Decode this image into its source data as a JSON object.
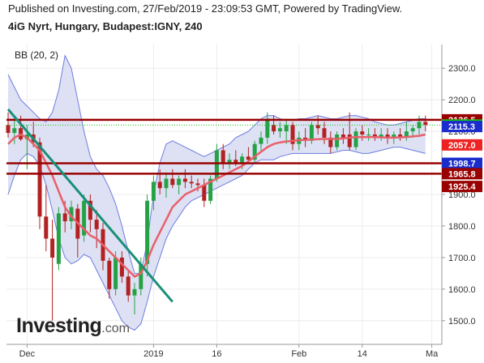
{
  "header": {
    "published": "Published on Investing.com, 27/Feb/2019 - 23:09:53 GMT, Powered by TradingView.",
    "symbol": "4iG Nyrt, Hungary, Budapest:IGNY, 240"
  },
  "indicator": {
    "label": "BB (20, 2)"
  },
  "logo": {
    "main": "Investing",
    "suffix": ".com"
  },
  "chart_data": {
    "type": "candlestick",
    "title": "4iG Nyrt, Hungary, Budapest:IGNY, 240",
    "y_axis": {
      "range": [
        1425,
        2375
      ],
      "ticks": [
        1500,
        1600,
        1700,
        1800,
        1900,
        2000,
        2100,
        2200,
        2300
      ],
      "tick_labels": [
        "1500.0",
        "1600.0",
        "1700.0",
        "1800.0",
        "1900.0",
        "2000.0",
        "2100.0",
        "2200.0",
        "2300.0"
      ]
    },
    "x_axis": {
      "labels": [
        {
          "text": "Dec",
          "bar": 3
        },
        {
          "text": "2019",
          "bar": 23
        },
        {
          "text": "16",
          "bar": 33
        },
        {
          "text": "Feb",
          "bar": 46
        },
        {
          "text": "14",
          "bar": 56
        },
        {
          "text": "Ma",
          "bar": 67
        }
      ]
    },
    "grid": true,
    "candles": [
      [
        2120,
        2160,
        2080,
        2095
      ],
      [
        2095,
        2140,
        2060,
        2110
      ],
      [
        2110,
        2150,
        2070,
        2075
      ],
      [
        2075,
        2120,
        1980,
        2090
      ],
      [
        2090,
        2130,
        2050,
        2065
      ],
      [
        2065,
        2080,
        1790,
        1830
      ],
      [
        1830,
        1930,
        1720,
        1760
      ],
      [
        1760,
        1820,
        1500,
        1700
      ],
      [
        1680,
        1860,
        1660,
        1840
      ],
      [
        1840,
        1880,
        1780,
        1815
      ],
      [
        1815,
        1880,
        1790,
        1860
      ],
      [
        1855,
        1870,
        1700,
        1760
      ],
      [
        1770,
        1900,
        1750,
        1880
      ],
      [
        1880,
        1900,
        1780,
        1820
      ],
      [
        1820,
        1850,
        1730,
        1790
      ],
      [
        1790,
        1810,
        1660,
        1690
      ],
      [
        1690,
        1700,
        1570,
        1600
      ],
      [
        1600,
        1720,
        1580,
        1700
      ],
      [
        1700,
        1720,
        1620,
        1640
      ],
      [
        1640,
        1660,
        1560,
        1580
      ],
      [
        1580,
        1620,
        1520,
        1600
      ],
      [
        1600,
        1700,
        1580,
        1680
      ],
      [
        1680,
        1900,
        1640,
        1880
      ],
      [
        1880,
        1960,
        1850,
        1940
      ],
      [
        1940,
        1980,
        1900,
        1920
      ],
      [
        1920,
        1970,
        1890,
        1950
      ],
      [
        1950,
        1980,
        1920,
        1930
      ],
      [
        1930,
        1960,
        1900,
        1950
      ],
      [
        1950,
        1980,
        1920,
        1940
      ],
      [
        1940,
        1960,
        1920,
        1935
      ],
      [
        1935,
        1950,
        1910,
        1930
      ],
      [
        1930,
        1950,
        1860,
        1880
      ],
      [
        1880,
        1960,
        1870,
        1950
      ],
      [
        1950,
        2060,
        1940,
        2040
      ],
      [
        2040,
        2060,
        1980,
        2000
      ],
      [
        2000,
        2030,
        1980,
        2010
      ],
      [
        2010,
        2040,
        1990,
        2000
      ],
      [
        2000,
        2030,
        1980,
        2020
      ],
      [
        2020,
        2050,
        2000,
        2010
      ],
      [
        2010,
        2070,
        2000,
        2060
      ],
      [
        2060,
        2100,
        2040,
        2080
      ],
      [
        2080,
        2160,
        2060,
        2140
      ],
      [
        2120,
        2150,
        2090,
        2100
      ],
      [
        2100,
        2130,
        2080,
        2110
      ],
      [
        2100,
        2140,
        2060,
        2120
      ],
      [
        2120,
        2130,
        2040,
        2060
      ],
      [
        2060,
        2100,
        2040,
        2080
      ],
      [
        2080,
        2110,
        2050,
        2070
      ],
      [
        2070,
        2130,
        2060,
        2120
      ],
      [
        2120,
        2150,
        2090,
        2110
      ],
      [
        2110,
        2130,
        2060,
        2080
      ],
      [
        2080,
        2100,
        2030,
        2050
      ],
      [
        2050,
        2100,
        2040,
        2090
      ],
      [
        2090,
        2110,
        2060,
        2080
      ],
      [
        2090,
        2160,
        2040,
        2050
      ],
      [
        2050,
        2110,
        2040,
        2100
      ],
      [
        2100,
        2120,
        2070,
        2090
      ],
      [
        2090,
        2110,
        2070,
        2090
      ],
      [
        2090,
        2110,
        2070,
        2080
      ],
      [
        2080,
        2110,
        2070,
        2090
      ],
      [
        2090,
        2110,
        2060,
        2080
      ],
      [
        2080,
        2100,
        2060,
        2090
      ],
      [
        2090,
        2110,
        2070,
        2080
      ],
      [
        2080,
        2130,
        2070,
        2100
      ],
      [
        2100,
        2120,
        2080,
        2110
      ],
      [
        2110,
        2150,
        2090,
        2130
      ],
      [
        2130,
        2150,
        2100,
        2120
      ]
    ],
    "bollinger": {
      "period": 20,
      "stddev": 2,
      "upper": [
        2280,
        2240,
        2200,
        2180,
        2160,
        2140,
        2130,
        2160,
        2230,
        2340,
        2300,
        2200,
        2100,
        2020,
        1980,
        1960,
        1920,
        1870,
        1800,
        1720,
        1650,
        1650,
        1750,
        1900,
        2000,
        2060,
        2070,
        2060,
        2050,
        2040,
        2030,
        2020,
        2030,
        2040,
        2050,
        2060,
        2080,
        2090,
        2100,
        2120,
        2140,
        2150,
        2150,
        2140,
        2135,
        2135,
        2140,
        2140,
        2145,
        2150,
        2145,
        2140,
        2140,
        2145,
        2150,
        2150,
        2145,
        2140,
        2130,
        2125,
        2120,
        2120,
        2125,
        2130,
        2135,
        2140,
        2140
      ],
      "middle": [
        2060,
        2080,
        2090,
        2080,
        2060,
        2040,
        2000,
        1960,
        1910,
        1860,
        1830,
        1810,
        1790,
        1770,
        1760,
        1740,
        1720,
        1700,
        1680,
        1660,
        1640,
        1650,
        1690,
        1740,
        1780,
        1820,
        1860,
        1880,
        1900,
        1910,
        1920,
        1930,
        1940,
        1950,
        1960,
        1970,
        1980,
        1990,
        2005,
        2020,
        2035,
        2050,
        2060,
        2065,
        2068,
        2070,
        2072,
        2073,
        2074,
        2075,
        2076,
        2076,
        2076,
        2078,
        2080,
        2082,
        2082,
        2082,
        2082,
        2081,
        2080,
        2080,
        2081,
        2082,
        2084,
        2086,
        2090
      ],
      "lower": [
        1900,
        1960,
        2010,
        2030,
        2020,
        1990,
        1930,
        1850,
        1760,
        1700,
        1680,
        1690,
        1710,
        1700,
        1660,
        1620,
        1580,
        1540,
        1500,
        1480,
        1470,
        1490,
        1560,
        1640,
        1700,
        1760,
        1800,
        1830,
        1860,
        1880,
        1890,
        1900,
        1910,
        1920,
        1930,
        1940,
        1950,
        1960,
        1980,
        2000,
        2010,
        2010,
        2010,
        2020,
        2025,
        2030,
        2030,
        2030,
        2030,
        2030,
        2030,
        2030,
        2035,
        2040,
        2040,
        2035,
        2030,
        2030,
        2035,
        2040,
        2045,
        2050,
        2050,
        2045,
        2040,
        2035,
        2030
      ]
    },
    "trendline": {
      "from": {
        "bar": 0,
        "price": 2170
      },
      "to": {
        "bar": 26,
        "price": 1560
      },
      "color": "#1a8f78"
    },
    "horizontal_levels": [
      2136.5,
      1998.7,
      1965.8
    ],
    "dotted_level": 2120.0,
    "price_labels": [
      {
        "text": "2136.5",
        "price": 2136.5,
        "bg": "#990000"
      },
      {
        "text": "2120.0",
        "price": 2120.0,
        "bg": "#12c412"
      },
      {
        "text": "2115.3",
        "price": 2115.3,
        "bg": "#1a2ccc"
      },
      {
        "text": "2057.0",
        "price": 2057.0,
        "bg": "#ee2222"
      },
      {
        "text": "1998.7",
        "price": 1998.7,
        "bg": "#1a2ccc"
      },
      {
        "text": "1965.8",
        "price": 1965.8,
        "bg": "#990000"
      },
      {
        "text": "1925.4",
        "price": 1925.4,
        "bg": "#990000"
      }
    ],
    "colors": {
      "up": "#26a246",
      "down": "#b22222",
      "band_fill": "#dde1f3",
      "band_line": "#6e7de0",
      "basis": "#e8606a",
      "level": "#990000"
    }
  }
}
